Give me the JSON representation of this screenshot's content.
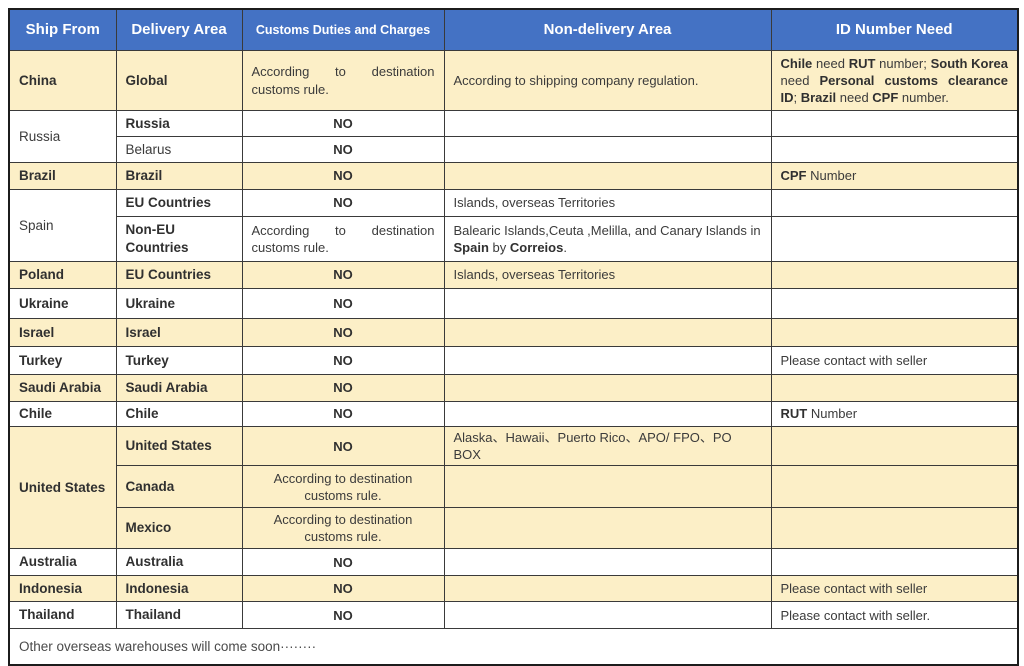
{
  "colors": {
    "header_bg": "#4472C4",
    "header_text": "#ffffff",
    "row_highlight": "#FCEFC7",
    "row_plain": "#ffffff",
    "border": "#3a3a3a"
  },
  "table": {
    "columns": [
      {
        "label": "Ship From"
      },
      {
        "label": "Delivery Area"
      },
      {
        "label": "Customs Duties and Charges"
      },
      {
        "label": "Non-delivery Area"
      },
      {
        "label": "ID Number Need"
      }
    ],
    "rows": [
      {
        "bg": "y",
        "cells": [
          {
            "c": 0,
            "seg": [
              {
                "t": "China",
                "b": true
              }
            ]
          },
          {
            "c": 1,
            "seg": [
              {
                "t": "Global",
                "b": true
              }
            ]
          },
          {
            "c": 2,
            "al": "j",
            "seg": [
              {
                "t": "According to destination customs rule.",
                "b": false
              }
            ]
          },
          {
            "c": 3,
            "seg": [
              {
                "t": "According to shipping company regulation.",
                "b": false
              }
            ]
          },
          {
            "c": 4,
            "al": "j",
            "seg": [
              {
                "t": "Chile",
                "b": true
              },
              {
                "t": " need ",
                "b": false
              },
              {
                "t": "RUT",
                "b": true
              },
              {
                "t": " number; ",
                "b": false
              },
              {
                "t": "South Korea",
                "b": true
              },
              {
                "t": " need ",
                "b": false
              },
              {
                "t": "Personal customs clearance ID",
                "b": true
              },
              {
                "t": "; ",
                "b": false
              },
              {
                "t": "Brazil",
                "b": true
              },
              {
                "t": " need ",
                "b": false
              },
              {
                "t": "CPF",
                "b": true
              },
              {
                "t": " number.",
                "b": false
              }
            ]
          }
        ]
      },
      {
        "bg": "w",
        "cells": [
          {
            "c": 0,
            "rs": 2,
            "seg": [
              {
                "t": "Russia",
                "b": false
              }
            ]
          },
          {
            "c": 1,
            "seg": [
              {
                "t": "Russia",
                "b": true
              }
            ]
          },
          {
            "c": 2,
            "seg": [
              {
                "t": "NO",
                "b": true
              }
            ]
          },
          {
            "c": 3,
            "seg": []
          },
          {
            "c": 4,
            "seg": []
          }
        ]
      },
      {
        "bg": "w",
        "cells": [
          {
            "c": 1,
            "seg": [
              {
                "t": "Belarus",
                "b": false
              }
            ]
          },
          {
            "c": 2,
            "seg": [
              {
                "t": "NO",
                "b": true
              }
            ]
          },
          {
            "c": 3,
            "seg": []
          },
          {
            "c": 4,
            "seg": []
          }
        ]
      },
      {
        "bg": "y",
        "cells": [
          {
            "c": 0,
            "seg": [
              {
                "t": "Brazil",
                "b": true
              }
            ]
          },
          {
            "c": 1,
            "seg": [
              {
                "t": "Brazil",
                "b": true
              }
            ]
          },
          {
            "c": 2,
            "seg": [
              {
                "t": "NO",
                "b": true
              }
            ]
          },
          {
            "c": 3,
            "seg": []
          },
          {
            "c": 4,
            "seg": [
              {
                "t": "CPF",
                "b": true
              },
              {
                "t": " Number",
                "b": false
              }
            ]
          }
        ]
      },
      {
        "bg": "w",
        "cells": [
          {
            "c": 0,
            "rs": 2,
            "seg": [
              {
                "t": "Spain",
                "b": false
              }
            ]
          },
          {
            "c": 1,
            "seg": [
              {
                "t": "EU Countries",
                "b": true
              }
            ]
          },
          {
            "c": 2,
            "seg": [
              {
                "t": "NO",
                "b": true
              }
            ]
          },
          {
            "c": 3,
            "seg": [
              {
                "t": "Islands, overseas Territories",
                "b": false
              }
            ]
          },
          {
            "c": 4,
            "seg": []
          }
        ]
      },
      {
        "bg": "w",
        "cells": [
          {
            "c": 1,
            "seg": [
              {
                "t": "Non-EU Countries",
                "b": true
              }
            ]
          },
          {
            "c": 2,
            "al": "j",
            "seg": [
              {
                "t": "According to destination customs rule.",
                "b": false
              }
            ]
          },
          {
            "c": 3,
            "seg": [
              {
                "t": "Balearic Islands,Ceuta ,Melilla, and Canary Islands in ",
                "b": false
              },
              {
                "t": "Spain",
                "b": true
              },
              {
                "t": " by ",
                "b": false
              },
              {
                "t": "Correios",
                "b": true
              },
              {
                "t": ".",
                "b": false
              }
            ]
          },
          {
            "c": 4,
            "seg": []
          }
        ]
      },
      {
        "bg": "y",
        "cells": [
          {
            "c": 0,
            "seg": [
              {
                "t": "Poland",
                "b": true
              }
            ]
          },
          {
            "c": 1,
            "seg": [
              {
                "t": "EU Countries",
                "b": true
              }
            ]
          },
          {
            "c": 2,
            "seg": [
              {
                "t": "NO",
                "b": true
              }
            ]
          },
          {
            "c": 3,
            "seg": [
              {
                "t": "Islands, overseas Territories",
                "b": false
              }
            ]
          },
          {
            "c": 4,
            "seg": []
          }
        ]
      },
      {
        "bg": "w",
        "cells": [
          {
            "c": 0,
            "seg": [
              {
                "t": "Ukraine",
                "b": true
              }
            ]
          },
          {
            "c": 1,
            "seg": [
              {
                "t": "Ukraine",
                "b": true
              }
            ]
          },
          {
            "c": 2,
            "seg": [
              {
                "t": "NO",
                "b": true
              }
            ]
          },
          {
            "c": 3,
            "seg": []
          },
          {
            "c": 4,
            "seg": []
          }
        ]
      },
      {
        "bg": "y",
        "cells": [
          {
            "c": 0,
            "seg": [
              {
                "t": "Israel",
                "b": true
              }
            ]
          },
          {
            "c": 1,
            "seg": [
              {
                "t": "Israel",
                "b": true
              }
            ]
          },
          {
            "c": 2,
            "seg": [
              {
                "t": "NO",
                "b": true
              }
            ]
          },
          {
            "c": 3,
            "seg": []
          },
          {
            "c": 4,
            "seg": []
          }
        ]
      },
      {
        "bg": "w",
        "cells": [
          {
            "c": 0,
            "seg": [
              {
                "t": "Turkey",
                "b": true
              }
            ]
          },
          {
            "c": 1,
            "seg": [
              {
                "t": "Turkey",
                "b": true
              }
            ]
          },
          {
            "c": 2,
            "seg": [
              {
                "t": "NO",
                "b": true
              }
            ]
          },
          {
            "c": 3,
            "seg": []
          },
          {
            "c": 4,
            "seg": [
              {
                "t": "Please contact with seller",
                "b": false
              }
            ]
          }
        ]
      },
      {
        "bg": "y",
        "cells": [
          {
            "c": 0,
            "seg": [
              {
                "t": "Saudi Arabia",
                "b": true
              }
            ]
          },
          {
            "c": 1,
            "seg": [
              {
                "t": "Saudi Arabia",
                "b": true
              }
            ]
          },
          {
            "c": 2,
            "seg": [
              {
                "t": "NO",
                "b": true
              }
            ]
          },
          {
            "c": 3,
            "seg": []
          },
          {
            "c": 4,
            "seg": []
          }
        ]
      },
      {
        "bg": "w",
        "cells": [
          {
            "c": 0,
            "seg": [
              {
                "t": "Chile",
                "b": true
              }
            ]
          },
          {
            "c": 1,
            "seg": [
              {
                "t": "Chile",
                "b": true
              }
            ]
          },
          {
            "c": 2,
            "seg": [
              {
                "t": "NO",
                "b": true
              }
            ]
          },
          {
            "c": 3,
            "seg": []
          },
          {
            "c": 4,
            "seg": [
              {
                "t": "RUT",
                "b": true
              },
              {
                "t": " Number",
                "b": false
              }
            ]
          }
        ]
      },
      {
        "bg": "y",
        "cells": [
          {
            "c": 0,
            "rs": 3,
            "seg": [
              {
                "t": "United States",
                "b": true
              }
            ]
          },
          {
            "c": 1,
            "seg": [
              {
                "t": "United States",
                "b": true
              }
            ]
          },
          {
            "c": 2,
            "seg": [
              {
                "t": "NO",
                "b": true
              }
            ]
          },
          {
            "c": 3,
            "seg": [
              {
                "t": "Alaska、Hawaii、Puerto Rico、APO/ FPO、PO BOX",
                "b": false
              }
            ]
          },
          {
            "c": 4,
            "seg": []
          }
        ]
      },
      {
        "bg": "y",
        "cells": [
          {
            "c": 1,
            "seg": [
              {
                "t": "Canada",
                "b": true
              }
            ]
          },
          {
            "c": 2,
            "seg": [
              {
                "t": "According to destination customs rule.",
                "b": false
              }
            ]
          },
          {
            "c": 3,
            "seg": []
          },
          {
            "c": 4,
            "seg": []
          }
        ]
      },
      {
        "bg": "y",
        "cells": [
          {
            "c": 1,
            "seg": [
              {
                "t": "Mexico",
                "b": true
              }
            ]
          },
          {
            "c": 2,
            "seg": [
              {
                "t": "According to destination customs rule.",
                "b": false
              }
            ]
          },
          {
            "c": 3,
            "seg": []
          },
          {
            "c": 4,
            "seg": []
          }
        ]
      },
      {
        "bg": "w",
        "cells": [
          {
            "c": 0,
            "seg": [
              {
                "t": "Australia",
                "b": true
              }
            ]
          },
          {
            "c": 1,
            "seg": [
              {
                "t": "Australia",
                "b": true
              }
            ]
          },
          {
            "c": 2,
            "seg": [
              {
                "t": "NO",
                "b": true
              }
            ]
          },
          {
            "c": 3,
            "seg": []
          },
          {
            "c": 4,
            "seg": []
          }
        ]
      },
      {
        "bg": "y",
        "cells": [
          {
            "c": 0,
            "seg": [
              {
                "t": "Indonesia",
                "b": true
              }
            ]
          },
          {
            "c": 1,
            "seg": [
              {
                "t": "Indonesia",
                "b": true
              }
            ]
          },
          {
            "c": 2,
            "seg": [
              {
                "t": "NO",
                "b": true
              }
            ]
          },
          {
            "c": 3,
            "seg": []
          },
          {
            "c": 4,
            "seg": [
              {
                "t": "Please contact with seller",
                "b": false
              }
            ]
          }
        ]
      },
      {
        "bg": "w",
        "cells": [
          {
            "c": 0,
            "seg": [
              {
                "t": "Thailand",
                "b": true
              }
            ]
          },
          {
            "c": 1,
            "seg": [
              {
                "t": "Thailand",
                "b": true
              }
            ]
          },
          {
            "c": 2,
            "seg": [
              {
                "t": "NO",
                "b": true
              }
            ]
          },
          {
            "c": 3,
            "seg": []
          },
          {
            "c": 4,
            "seg": [
              {
                "t": "Please contact with seller.",
                "b": false
              }
            ]
          }
        ]
      }
    ],
    "footer": "Other overseas warehouses will come soon········"
  }
}
